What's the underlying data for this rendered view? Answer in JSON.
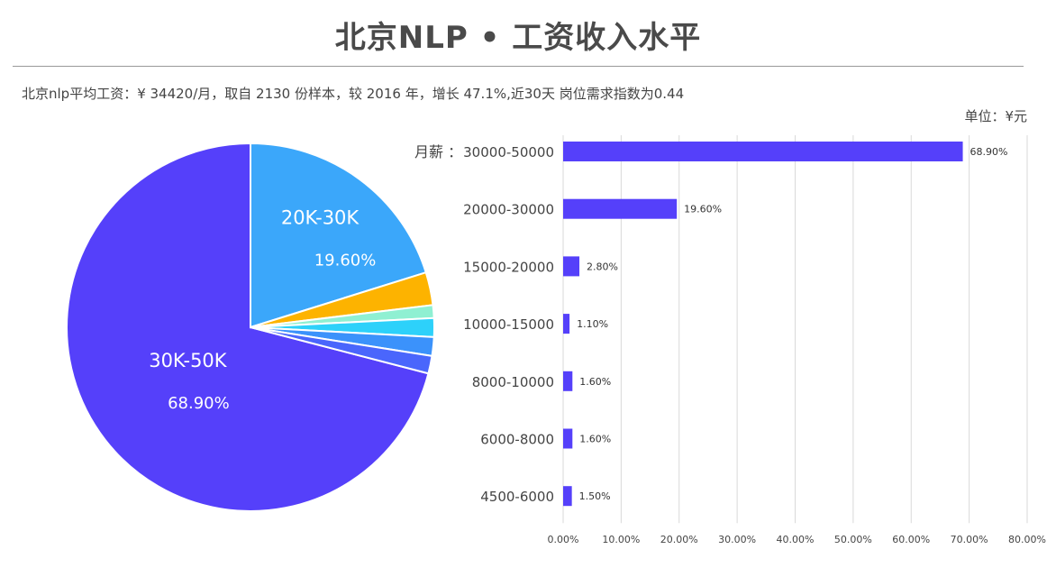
{
  "title": "北京NLP • 工资收入水平",
  "subtitle": "北京nlp平均工资：¥ 34420/月，取自 2130 份样本，较 2016 年，增长 47.1%,近30天 岗位需求指数为0.44",
  "unit_label": "单位：¥元",
  "month_label": "月薪 ：",
  "chart_data": [
    {
      "type": "pie",
      "slices": [
        {
          "label": "30K-50K",
          "value": 68.9,
          "value_label": "68.90%",
          "color": "#5540fa",
          "show_label": true
        },
        {
          "label": "20K-30K",
          "value": 19.6,
          "value_label": "19.60%",
          "color": "#3ba7fa",
          "show_label": true
        },
        {
          "label": "",
          "value": 2.8,
          "value_label": "",
          "color": "#fdb300",
          "show_label": false
        },
        {
          "label": "",
          "value": 1.1,
          "value_label": "",
          "color": "#8ff0d2",
          "show_label": false
        },
        {
          "label": "",
          "value": 1.6,
          "value_label": "",
          "color": "#2dd1fa",
          "show_label": false
        },
        {
          "label": "",
          "value": 1.6,
          "value_label": "",
          "color": "#3b92fb",
          "show_label": false
        },
        {
          "label": "",
          "value": 1.5,
          "value_label": "",
          "color": "#4a66fc",
          "show_label": false
        }
      ]
    },
    {
      "type": "bar",
      "orientation": "horizontal",
      "categories": [
        "30000-50000",
        "20000-30000",
        "15000-20000",
        "10000-15000",
        "8000-10000",
        "6000-8000",
        "4500-6000"
      ],
      "values": [
        68.9,
        19.6,
        2.8,
        1.1,
        1.6,
        1.6,
        1.5
      ],
      "value_labels": [
        "68.90%",
        "19.60%",
        "2.80%",
        "1.10%",
        "1.60%",
        "1.60%",
        "1.50%"
      ],
      "xlim": [
        0,
        80
      ],
      "xticks": [
        "0.00%",
        "10.00%",
        "20.00%",
        "30.00%",
        "40.00%",
        "50.00%",
        "60.00%",
        "70.00%",
        "80.00%"
      ],
      "bar_color": "#5540fa",
      "grid": true
    }
  ]
}
